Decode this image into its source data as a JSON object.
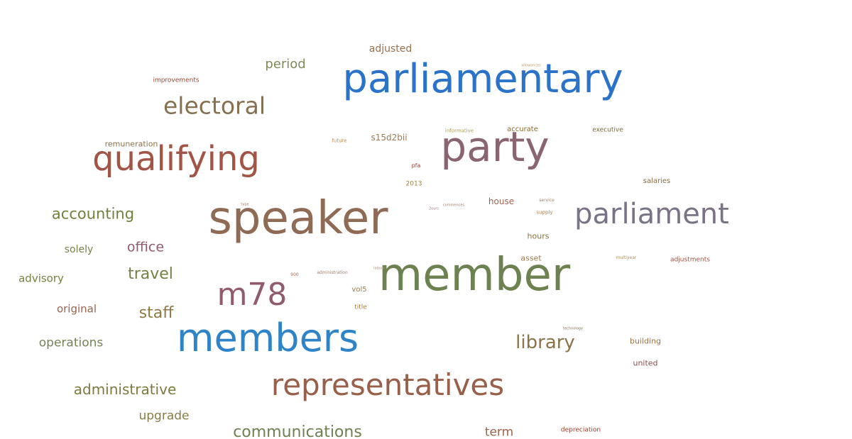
{
  "words": [
    {
      "text": "parliamentary",
      "color": "#2a73c9"
    },
    {
      "text": "speaker",
      "color": "#8f6a55"
    },
    {
      "text": "member",
      "color": "#6d8250"
    },
    {
      "text": "members",
      "color": "#2f84c8"
    },
    {
      "text": "party",
      "color": "#8a6470"
    },
    {
      "text": "representatives",
      "color": "#98604a"
    },
    {
      "text": "qualifying",
      "color": "#a25446"
    },
    {
      "text": "parliament",
      "color": "#7a7385"
    },
    {
      "text": "m78",
      "color": "#915a6d"
    },
    {
      "text": "electoral",
      "color": "#85704f"
    },
    {
      "text": "library",
      "color": "#8c7448"
    },
    {
      "text": "communications",
      "color": "#6f8053"
    },
    {
      "text": "accounting",
      "color": "#71803d"
    },
    {
      "text": "administrative",
      "color": "#7d7a40"
    },
    {
      "text": "travel",
      "color": "#738046"
    },
    {
      "text": "staff",
      "color": "#8c7a45"
    },
    {
      "text": "office",
      "color": "#925a6e"
    },
    {
      "text": "period",
      "color": "#7f8a5a"
    },
    {
      "text": "upgrade",
      "color": "#8a7c45"
    },
    {
      "text": "term",
      "color": "#a0634a"
    },
    {
      "text": "operations",
      "color": "#748459"
    },
    {
      "text": "original",
      "color": "#98654c"
    },
    {
      "text": "advisory",
      "color": "#76813f"
    },
    {
      "text": "solely",
      "color": "#78824e"
    },
    {
      "text": "adjusted",
      "color": "#9a6f4c"
    },
    {
      "text": "improvements",
      "color": "#a0422c"
    },
    {
      "text": "remuneration",
      "color": "#8a7048"
    },
    {
      "text": "s15d2bii",
      "color": "#9a7a56"
    },
    {
      "text": "future",
      "color": "#b88a50"
    },
    {
      "text": "informative",
      "color": "#b0a060"
    },
    {
      "text": "accurate",
      "color": "#8a6a30"
    },
    {
      "text": "executive",
      "color": "#7a6a30"
    },
    {
      "text": "pfa",
      "color": "#a04030"
    },
    {
      "text": "2013",
      "color": "#a08040"
    },
    {
      "text": "salaries",
      "color": "#8a6a40"
    },
    {
      "text": "house",
      "color": "#a06050"
    },
    {
      "text": "service",
      "color": "#a08060"
    },
    {
      "text": "supply",
      "color": "#b08050"
    },
    {
      "text": "commences",
      "color": "#a08070"
    },
    {
      "text": "2ours",
      "color": "#a08080"
    },
    {
      "text": "type",
      "color": "#a08070"
    },
    {
      "text": "hours",
      "color": "#8a7040"
    },
    {
      "text": "asset",
      "color": "#9a7a50"
    },
    {
      "text": "multiyear",
      "color": "#b09060"
    },
    {
      "text": "adjustments",
      "color": "#a05040"
    },
    {
      "text": "900",
      "color": "#b07050"
    },
    {
      "text": "administration",
      "color": "#a08070"
    },
    {
      "text": "labour",
      "color": "#b09070"
    },
    {
      "text": "vol5",
      "color": "#9a7a50"
    },
    {
      "text": "title",
      "color": "#a08040"
    },
    {
      "text": "technology",
      "color": "#8a7050"
    },
    {
      "text": "building",
      "color": "#9a7040"
    },
    {
      "text": "united",
      "color": "#8a5050"
    },
    {
      "text": "depreciation",
      "color": "#a03a2a"
    },
    {
      "text": "allowances",
      "color": "#c0a070"
    }
  ]
}
